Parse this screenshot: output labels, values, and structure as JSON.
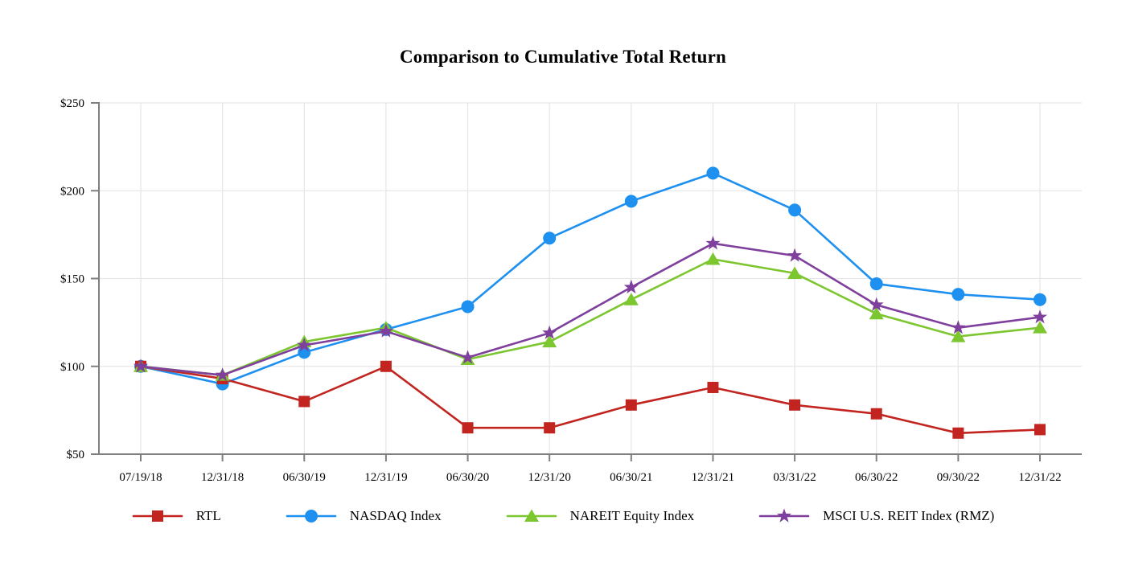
{
  "title": "Comparison to Cumulative Total Return",
  "chart_data": {
    "type": "line",
    "title": "Comparison to Cumulative Total Return",
    "xlabel": "",
    "ylabel": "",
    "categories": [
      "07/19/18",
      "12/31/18",
      "06/30/19",
      "12/31/19",
      "06/30/20",
      "12/31/20",
      "06/30/21",
      "12/31/21",
      "03/31/22",
      "06/30/22",
      "09/30/22",
      "12/31/22"
    ],
    "series": [
      {
        "name": "RTL",
        "marker": "square",
        "color": "#C2251F",
        "values": [
          100,
          93,
          80,
          100,
          65,
          65,
          78,
          88,
          78,
          73,
          62,
          64
        ]
      },
      {
        "name": "NASDAQ Index",
        "marker": "circle",
        "color": "#1E90F0",
        "values": [
          100,
          90,
          108,
          121,
          134,
          173,
          194,
          210,
          189,
          147,
          141,
          138
        ]
      },
      {
        "name": "NAREIT Equity Index",
        "marker": "triangle",
        "color": "#7CC62F",
        "values": [
          100,
          95,
          114,
          122,
          104,
          114,
          138,
          161,
          153,
          130,
          117,
          122
        ]
      },
      {
        "name": "MSCI U.S. REIT Index (RMZ)",
        "marker": "star",
        "color": "#7E3F9D",
        "values": [
          100,
          95,
          112,
          120,
          105,
          119,
          145,
          170,
          163,
          135,
          122,
          128
        ]
      }
    ],
    "draw_order": [
      1,
      0,
      2,
      3
    ],
    "ylim": [
      50,
      250
    ],
    "ytick_values": [
      50,
      100,
      150,
      200,
      250
    ],
    "ytick_labels": [
      "$50",
      "$100",
      "$150",
      "$200",
      "$250"
    ],
    "grid": true,
    "legend_position": "bottom"
  },
  "colors": {
    "background": "#FFFFFF",
    "grid": "#E7E7E7",
    "axis": "#7F7F7F",
    "text": "#000000"
  }
}
